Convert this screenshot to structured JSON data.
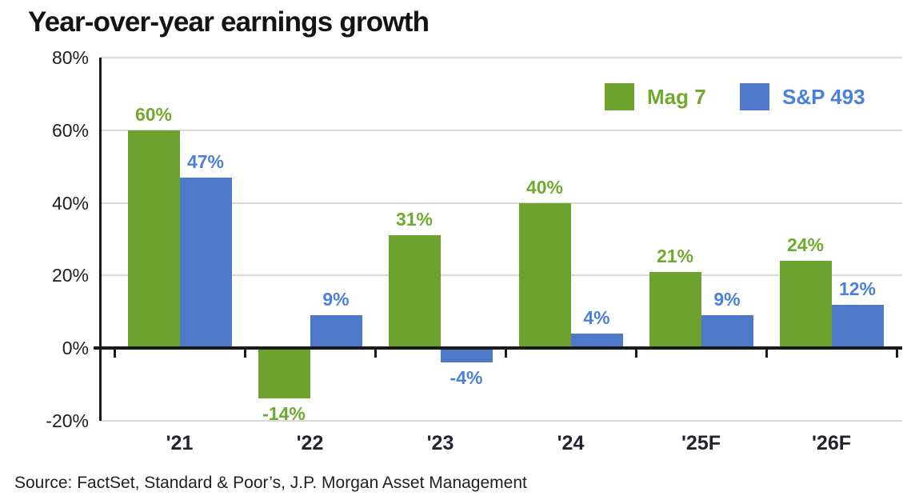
{
  "title": "Year-over-year earnings growth",
  "source": "Source: FactSet, Standard & Poor’s, J.P. Morgan Asset Management",
  "colors": {
    "mag7_green": "#6CA22D",
    "mag7_label_green": "#6FA92E",
    "sp493_blue": "#4E79C9",
    "sp493_label_blue": "#4A80D9",
    "gridline_gray": "#d9d9d9",
    "axis_black": "#1a1a1a"
  },
  "chart_data": {
    "type": "bar",
    "categories": [
      "'21",
      "'22",
      "'23",
      "'24",
      "'25F",
      "'26F"
    ],
    "series": [
      {
        "name": "Mag 7",
        "color": "#6CA22D",
        "label_color": "#6FA92E",
        "values": [
          60,
          -14,
          31,
          40,
          21,
          24
        ]
      },
      {
        "name": "S&P 493",
        "color": "#4E79C9",
        "label_color": "#4A80D9",
        "values": [
          47,
          9,
          -4,
          4,
          9,
          12
        ]
      }
    ],
    "title": "Year-over-year earnings growth",
    "xlabel": "",
    "ylabel": "",
    "y_ticks": [
      80,
      60,
      40,
      20,
      0,
      -20
    ],
    "y_tick_labels": [
      "80%",
      "60%",
      "40%",
      "20%",
      "0%",
      "-20%"
    ],
    "ylim": [
      -20,
      80
    ],
    "grid": true,
    "legend_position": "top-right",
    "value_suffix": "%"
  }
}
